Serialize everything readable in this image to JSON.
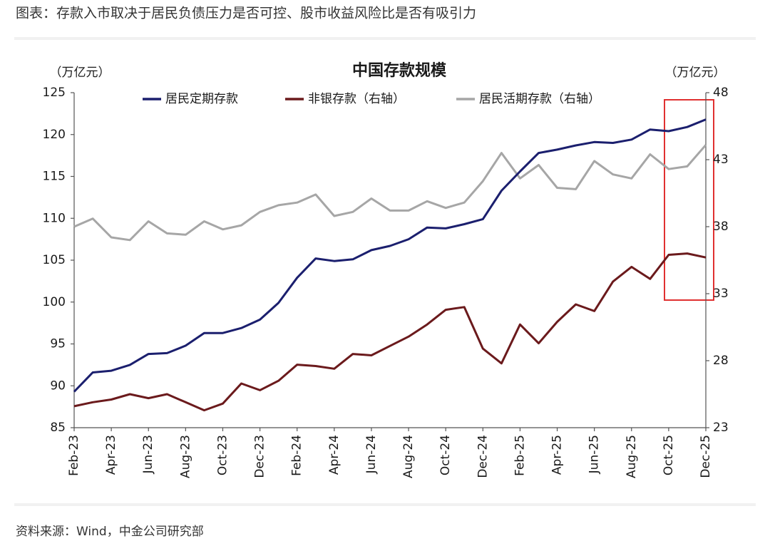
{
  "caption": "图表：存款入市取决于居民负债压力是否可控、股市收益风险比是否有吸引力",
  "source": "资料来源：Wind，中金公司研究部",
  "chart_data": {
    "type": "line",
    "title": "中国存款规模",
    "y_label": "（万亿元）",
    "y2_label": "（万亿元）",
    "categories": [
      "Feb-23",
      null,
      "Apr-23",
      null,
      "Jun-23",
      null,
      "Aug-23",
      null,
      "Oct-23",
      null,
      "Dec-23",
      null,
      "Feb-24",
      null,
      "Apr-24",
      null,
      "Jun-24",
      null,
      "Aug-24",
      null,
      "Oct-24",
      null,
      "Dec-24",
      null,
      "Feb-25",
      null,
      "Apr-25",
      null,
      "Jun-25",
      null,
      "Aug-25",
      null,
      "Oct-25",
      null,
      "Dec-25"
    ],
    "series": [
      {
        "name": "居民定期存款",
        "color": "#1b1f6e",
        "axis": "y",
        "values": [
          89.3,
          91.6,
          91.8,
          92.5,
          93.8,
          93.9,
          94.8,
          96.3,
          96.3,
          96.9,
          97.9,
          99.9,
          102.9,
          105.2,
          104.9,
          105.1,
          106.2,
          106.7,
          107.5,
          108.9,
          108.8,
          109.3,
          109.9,
          113.3,
          115.6,
          117.8,
          118.2,
          118.7,
          119.1,
          119.0,
          119.4,
          120.6,
          120.4,
          120.9,
          121.8
        ]
      },
      {
        "name": "非银存款（右轴）",
        "color": "#6b1a1c",
        "axis": "y2",
        "values": [
          24.6,
          24.9,
          25.1,
          25.5,
          25.2,
          25.5,
          24.9,
          24.3,
          24.8,
          26.3,
          25.8,
          26.5,
          27.7,
          27.6,
          27.4,
          28.5,
          28.4,
          29.1,
          29.8,
          30.7,
          31.8,
          32.0,
          28.9,
          27.8,
          30.7,
          29.3,
          30.9,
          32.2,
          31.7,
          33.9,
          35.0,
          34.1,
          35.9,
          36.0,
          35.7
        ]
      },
      {
        "name": "居民活期存款（右轴）",
        "color": "#a6a6a6",
        "axis": "y2",
        "values": [
          38.0,
          38.6,
          37.2,
          37.0,
          38.4,
          37.5,
          37.4,
          38.4,
          37.8,
          38.1,
          39.1,
          39.6,
          39.8,
          40.4,
          38.8,
          39.1,
          40.1,
          39.2,
          39.2,
          39.9,
          39.4,
          39.8,
          41.4,
          43.5,
          41.6,
          42.6,
          40.9,
          40.8,
          42.9,
          41.9,
          41.6,
          43.4,
          42.3,
          42.5,
          44.1
        ]
      }
    ],
    "ylim": [
      85,
      125
    ],
    "yticks": [
      85,
      90,
      95,
      100,
      105,
      110,
      115,
      120,
      125
    ],
    "y2lim": [
      23,
      48
    ],
    "y2ticks": [
      23,
      28,
      33,
      38,
      43,
      48
    ]
  }
}
